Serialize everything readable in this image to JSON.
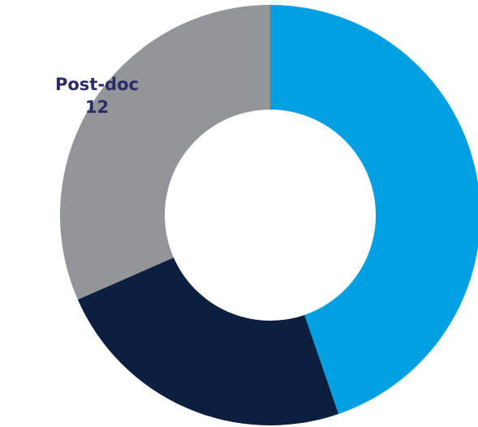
{
  "chart_data": {
    "type": "donut",
    "categories": [
      null,
      null,
      "Post-doc"
    ],
    "values": [
      17,
      9,
      12
    ],
    "colors": [
      "#00a0e3",
      "#0c1f3f",
      "#939598"
    ]
  }
}
